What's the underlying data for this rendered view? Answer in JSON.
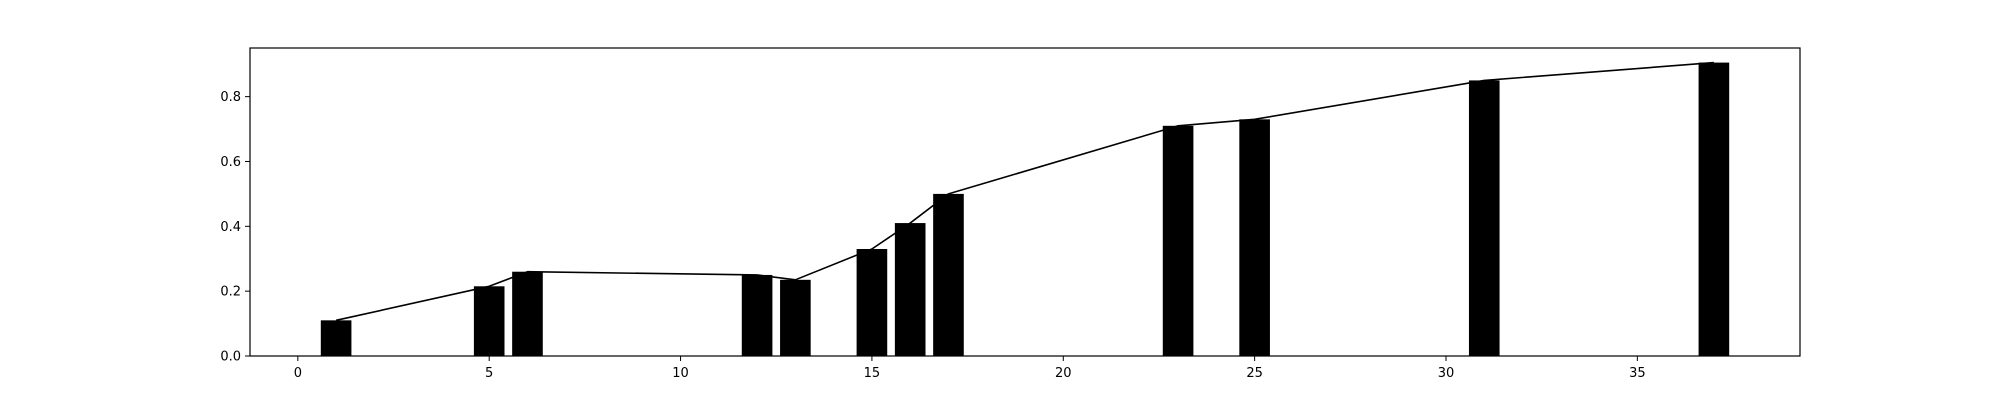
{
  "chart_data": {
    "type": "bar",
    "title": "",
    "xlabel": "",
    "ylabel": "",
    "xlim": [
      -1.25,
      39.25
    ],
    "ylim": [
      0.0,
      0.95
    ],
    "grid": false,
    "x_ticks": [
      "0",
      "5",
      "10",
      "15",
      "20",
      "25",
      "30",
      "35"
    ],
    "y_ticks": [
      "0.0",
      "0.2",
      "0.4",
      "0.6",
      "0.8"
    ],
    "bar_width": 0.8,
    "bar_color": "#000000",
    "line_color": "#000000",
    "x": [
      1,
      5,
      6,
      12,
      13,
      15,
      16,
      17,
      23,
      25,
      31,
      37
    ],
    "values": [
      0.11,
      0.215,
      0.26,
      0.25,
      0.235,
      0.33,
      0.41,
      0.5,
      0.71,
      0.73,
      0.85,
      0.905
    ],
    "line": {
      "x": [
        1,
        5,
        6,
        12,
        13,
        15,
        16,
        17,
        23,
        25,
        31,
        37
      ],
      "y": [
        0.11,
        0.215,
        0.26,
        0.25,
        0.235,
        0.33,
        0.41,
        0.5,
        0.71,
        0.73,
        0.85,
        0.905
      ]
    }
  }
}
